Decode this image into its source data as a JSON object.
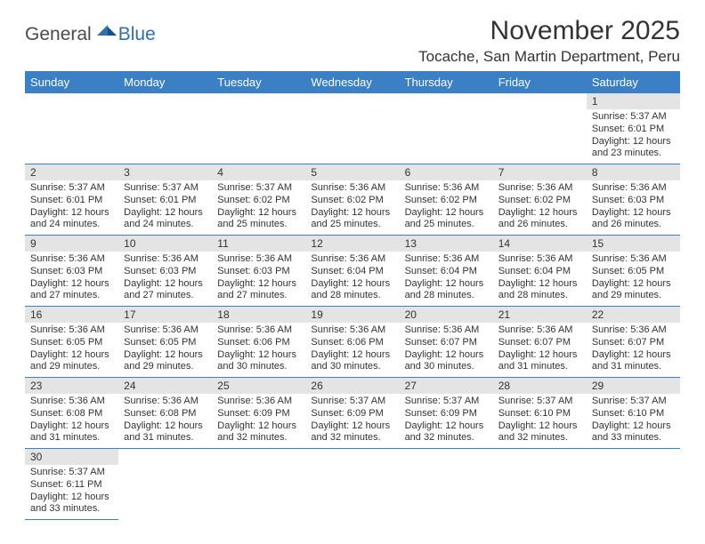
{
  "logo": {
    "general": "General",
    "blue": "Blue"
  },
  "header": {
    "title": "November 2025",
    "location": "Tocache, San Martin Department, Peru"
  },
  "colors": {
    "header_bg": "#3b7fc4",
    "header_text": "#ffffff",
    "daynum_bg": "#e4e4e4",
    "row_divider": "#3b7fc4",
    "logo_blue": "#2f6fab",
    "logo_gray": "#4a4a4a"
  },
  "weekdays": [
    "Sunday",
    "Monday",
    "Tuesday",
    "Wednesday",
    "Thursday",
    "Friday",
    "Saturday"
  ],
  "leading_blanks": 6,
  "days": [
    {
      "n": 1,
      "sunrise": "5:37 AM",
      "sunset": "6:01 PM",
      "daylight": "12 hours and 23 minutes."
    },
    {
      "n": 2,
      "sunrise": "5:37 AM",
      "sunset": "6:01 PM",
      "daylight": "12 hours and 24 minutes."
    },
    {
      "n": 3,
      "sunrise": "5:37 AM",
      "sunset": "6:01 PM",
      "daylight": "12 hours and 24 minutes."
    },
    {
      "n": 4,
      "sunrise": "5:37 AM",
      "sunset": "6:02 PM",
      "daylight": "12 hours and 25 minutes."
    },
    {
      "n": 5,
      "sunrise": "5:36 AM",
      "sunset": "6:02 PM",
      "daylight": "12 hours and 25 minutes."
    },
    {
      "n": 6,
      "sunrise": "5:36 AM",
      "sunset": "6:02 PM",
      "daylight": "12 hours and 25 minutes."
    },
    {
      "n": 7,
      "sunrise": "5:36 AM",
      "sunset": "6:02 PM",
      "daylight": "12 hours and 26 minutes."
    },
    {
      "n": 8,
      "sunrise": "5:36 AM",
      "sunset": "6:03 PM",
      "daylight": "12 hours and 26 minutes."
    },
    {
      "n": 9,
      "sunrise": "5:36 AM",
      "sunset": "6:03 PM",
      "daylight": "12 hours and 27 minutes."
    },
    {
      "n": 10,
      "sunrise": "5:36 AM",
      "sunset": "6:03 PM",
      "daylight": "12 hours and 27 minutes."
    },
    {
      "n": 11,
      "sunrise": "5:36 AM",
      "sunset": "6:03 PM",
      "daylight": "12 hours and 27 minutes."
    },
    {
      "n": 12,
      "sunrise": "5:36 AM",
      "sunset": "6:04 PM",
      "daylight": "12 hours and 28 minutes."
    },
    {
      "n": 13,
      "sunrise": "5:36 AM",
      "sunset": "6:04 PM",
      "daylight": "12 hours and 28 minutes."
    },
    {
      "n": 14,
      "sunrise": "5:36 AM",
      "sunset": "6:04 PM",
      "daylight": "12 hours and 28 minutes."
    },
    {
      "n": 15,
      "sunrise": "5:36 AM",
      "sunset": "6:05 PM",
      "daylight": "12 hours and 29 minutes."
    },
    {
      "n": 16,
      "sunrise": "5:36 AM",
      "sunset": "6:05 PM",
      "daylight": "12 hours and 29 minutes."
    },
    {
      "n": 17,
      "sunrise": "5:36 AM",
      "sunset": "6:05 PM",
      "daylight": "12 hours and 29 minutes."
    },
    {
      "n": 18,
      "sunrise": "5:36 AM",
      "sunset": "6:06 PM",
      "daylight": "12 hours and 30 minutes."
    },
    {
      "n": 19,
      "sunrise": "5:36 AM",
      "sunset": "6:06 PM",
      "daylight": "12 hours and 30 minutes."
    },
    {
      "n": 20,
      "sunrise": "5:36 AM",
      "sunset": "6:07 PM",
      "daylight": "12 hours and 30 minutes."
    },
    {
      "n": 21,
      "sunrise": "5:36 AM",
      "sunset": "6:07 PM",
      "daylight": "12 hours and 31 minutes."
    },
    {
      "n": 22,
      "sunrise": "5:36 AM",
      "sunset": "6:07 PM",
      "daylight": "12 hours and 31 minutes."
    },
    {
      "n": 23,
      "sunrise": "5:36 AM",
      "sunset": "6:08 PM",
      "daylight": "12 hours and 31 minutes."
    },
    {
      "n": 24,
      "sunrise": "5:36 AM",
      "sunset": "6:08 PM",
      "daylight": "12 hours and 31 minutes."
    },
    {
      "n": 25,
      "sunrise": "5:36 AM",
      "sunset": "6:09 PM",
      "daylight": "12 hours and 32 minutes."
    },
    {
      "n": 26,
      "sunrise": "5:37 AM",
      "sunset": "6:09 PM",
      "daylight": "12 hours and 32 minutes."
    },
    {
      "n": 27,
      "sunrise": "5:37 AM",
      "sunset": "6:09 PM",
      "daylight": "12 hours and 32 minutes."
    },
    {
      "n": 28,
      "sunrise": "5:37 AM",
      "sunset": "6:10 PM",
      "daylight": "12 hours and 32 minutes."
    },
    {
      "n": 29,
      "sunrise": "5:37 AM",
      "sunset": "6:10 PM",
      "daylight": "12 hours and 33 minutes."
    },
    {
      "n": 30,
      "sunrise": "5:37 AM",
      "sunset": "6:11 PM",
      "daylight": "12 hours and 33 minutes."
    }
  ],
  "labels": {
    "sunrise": "Sunrise:",
    "sunset": "Sunset:",
    "daylight": "Daylight:"
  }
}
